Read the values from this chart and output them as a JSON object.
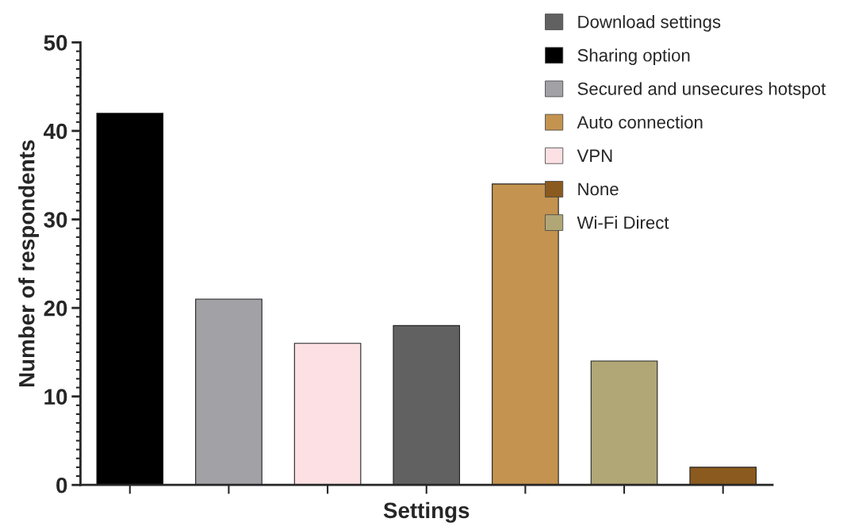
{
  "chart_data": {
    "type": "bar",
    "xlabel": "Settings",
    "ylabel": "Number of respondents",
    "categories": [
      null,
      null,
      null,
      null,
      null,
      null,
      null
    ],
    "series": [
      {
        "name": "Download settings",
        "color": "#616161",
        "values": [
          null,
          null,
          null,
          18,
          null,
          null,
          null
        ]
      },
      {
        "name": "Sharing option",
        "color": "#000000",
        "values": [
          42,
          null,
          null,
          null,
          null,
          null,
          null
        ]
      },
      {
        "name": "Secured and unsecures hotspot",
        "color": "#a2a1a6",
        "values": [
          null,
          21,
          null,
          null,
          null,
          null,
          null
        ]
      },
      {
        "name": "Auto connection",
        "color": "#c4934f",
        "values": [
          null,
          null,
          null,
          null,
          34,
          null,
          null
        ]
      },
      {
        "name": "VPN",
        "color": "#fde0e3",
        "values": [
          null,
          null,
          16,
          null,
          null,
          null,
          null
        ]
      },
      {
        "name": "None",
        "color": "#8b5a1e",
        "values": [
          null,
          null,
          null,
          null,
          null,
          null,
          2
        ]
      },
      {
        "name": "Wi-Fi Direct",
        "color": "#b1a776",
        "values": [
          null,
          null,
          null,
          null,
          null,
          14,
          null
        ]
      }
    ],
    "ylim": [
      0,
      50
    ],
    "yticks": [
      0,
      10,
      20,
      30,
      40,
      50
    ],
    "grid": false,
    "legend": "top right"
  }
}
